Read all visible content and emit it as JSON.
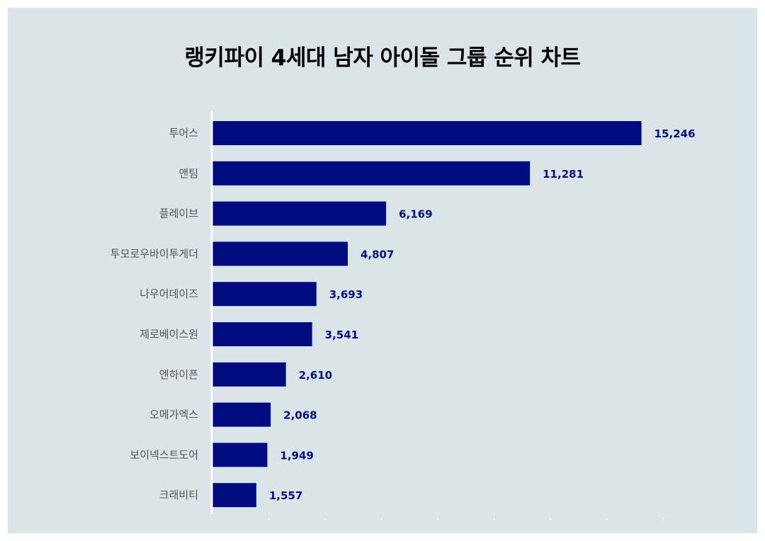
{
  "chart_data": {
    "type": "bar",
    "orientation": "horizontal",
    "title": "랭키파이 4세대 남자 아이돌 그룹 순위 차트",
    "categories": [
      "투어스",
      "앤팀",
      "플레이브",
      "투모로우바이투게더",
      "나우어데이즈",
      "제로베이스원",
      "엔하이픈",
      "오메가엑스",
      "보이넥스트도어",
      "크래비티"
    ],
    "values": [
      15246,
      11281,
      6169,
      4807,
      3693,
      3541,
      2610,
      2068,
      1949,
      1557
    ],
    "value_labels": [
      "15,246",
      "11,281",
      "6,169",
      "4,807",
      "3,693",
      "3,541",
      "2,610",
      "2,068",
      "1,949",
      "1,557"
    ],
    "xlim": [
      0,
      20000
    ],
    "grid": false,
    "legend": "none",
    "colors": {
      "bar": "#000c80",
      "value_label": "#00107e",
      "category_label": "#555555",
      "background": "#dae4e9",
      "axis": "#ffffff"
    }
  }
}
